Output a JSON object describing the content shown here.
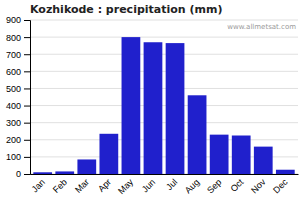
{
  "chart_data": {
    "type": "bar",
    "title": "Kozhikode : precipitation (mm)",
    "categories": [
      "Jan",
      "Feb",
      "Mar",
      "Apr",
      "May",
      "Jun",
      "Jul",
      "Aug",
      "Sep",
      "Oct",
      "Nov",
      "Dec"
    ],
    "values": [
      10,
      15,
      85,
      235,
      800,
      770,
      765,
      460,
      230,
      225,
      160,
      25
    ],
    "color": "#2020cc",
    "ylim": [
      0,
      900
    ],
    "yticks": [
      0,
      100,
      200,
      300,
      400,
      500,
      600,
      700,
      800,
      900
    ],
    "grid": true,
    "annotation": "www.allmetsat.com"
  }
}
